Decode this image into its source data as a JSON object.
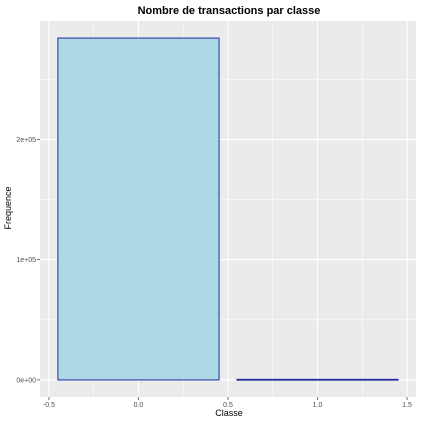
{
  "chart_data": {
    "type": "bar",
    "title": "Nombre de transactions par classe",
    "xlabel": "Classe",
    "ylabel": "Frequence",
    "categories": [
      "0",
      "1"
    ],
    "x": [
      0,
      1
    ],
    "values": [
      284315,
      492
    ],
    "xlim": [
      -0.55,
      1.55
    ],
    "ylim": [
      -14200,
      298500
    ],
    "x_ticks": [
      -0.5,
      0.0,
      0.5,
      1.0,
      1.5
    ],
    "x_tick_labels": [
      "-0.5",
      "0.0",
      "0.5",
      "1.0",
      "1.5"
    ],
    "y_ticks": [
      0,
      100000,
      200000
    ],
    "y_tick_labels": [
      "0e+00",
      "1e+05",
      "2e+05"
    ],
    "bar_width": 0.9,
    "grid": true,
    "legend": "none",
    "colors": {
      "panel_bg": "#ebebeb",
      "grid_major": "#ffffff",
      "bar_fill": "#add8e6",
      "bar_stroke": "#1f2a9c"
    }
  }
}
